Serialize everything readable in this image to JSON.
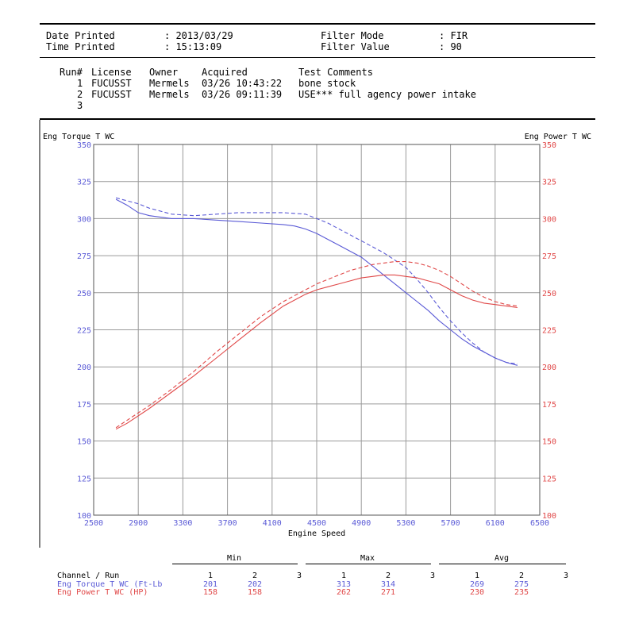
{
  "header": {
    "date_label": "Date Printed",
    "date_value": ": 2013/03/29",
    "time_label": "Time Printed",
    "time_value": ": 15:13:09",
    "filter_mode_label": "Filter Mode",
    "filter_mode_value": ": FIR",
    "filter_value_label": "Filter Value",
    "filter_value_value": ": 90"
  },
  "runs": {
    "columns": [
      "Run#",
      "License",
      "Owner",
      "Acquired",
      "Test Comments"
    ],
    "rows": [
      {
        "run": "1",
        "license": "FUCUSST",
        "owner": "Mermels",
        "acquired": "03/26 10:43:22",
        "comment": "bone stock"
      },
      {
        "run": "2",
        "license": "FUCUSST",
        "owner": "Mermels",
        "acquired": "03/26 09:11:39",
        "comment": "USE*** full agency power intake"
      },
      {
        "run": "3",
        "license": "",
        "owner": "",
        "acquired": "",
        "comment": ""
      }
    ]
  },
  "colors": {
    "torque": "#5a5ad6",
    "power": "#e04848",
    "grid": "#9a9a9a"
  },
  "chart_data": {
    "type": "line",
    "left_axis_label": "Eng Torque T WC",
    "right_axis_label": "Eng Power T WC",
    "xlabel": "Engine Speed",
    "xlim": [
      2500,
      6500
    ],
    "ylim": [
      100,
      350
    ],
    "x_ticks": [
      2500,
      2900,
      3300,
      3700,
      4100,
      4500,
      4900,
      5300,
      5700,
      6100,
      6500
    ],
    "y_ticks": [
      100,
      125,
      150,
      175,
      200,
      225,
      250,
      275,
      300,
      325,
      350
    ],
    "grid": true,
    "series": [
      {
        "name": "Eng Torque T WC (Ft-Lb) Run 1",
        "axis": "left",
        "style": "solid",
        "color_key": "torque",
        "x": [
          2700,
          2800,
          2900,
          3000,
          3200,
          3400,
          3600,
          3800,
          4000,
          4200,
          4300,
          4400,
          4500,
          4600,
          4700,
          4800,
          4900,
          5000,
          5100,
          5200,
          5300,
          5400,
          5500,
          5600,
          5700,
          5800,
          5900,
          6000,
          6100,
          6200,
          6300
        ],
        "y": [
          313,
          309,
          304,
          302,
          300,
          300,
          299,
          298,
          297,
          296,
          295,
          293,
          290,
          286,
          282,
          278,
          274,
          268,
          262,
          256,
          250,
          244,
          238,
          231,
          225,
          219,
          214,
          210,
          206,
          203,
          201
        ]
      },
      {
        "name": "Eng Torque T WC (Ft-Lb) Run 2",
        "axis": "left",
        "style": "dashed",
        "color_key": "torque",
        "x": [
          2700,
          2800,
          2900,
          3000,
          3200,
          3400,
          3600,
          3800,
          4000,
          4200,
          4400,
          4500,
          4600,
          4700,
          4800,
          4900,
          5000,
          5100,
          5200,
          5300,
          5400,
          5500,
          5600,
          5700,
          5800,
          5900,
          6000,
          6100,
          6200,
          6300
        ],
        "y": [
          314,
          312,
          310,
          307,
          303,
          302,
          303,
          304,
          304,
          304,
          303,
          300,
          297,
          293,
          289,
          285,
          281,
          277,
          272,
          267,
          259,
          250,
          240,
          231,
          223,
          216,
          210,
          206,
          203,
          202
        ]
      },
      {
        "name": "Eng Power T WC (HP) Run 1",
        "axis": "right",
        "style": "solid",
        "color_key": "power",
        "x": [
          2700,
          2800,
          3000,
          3200,
          3400,
          3600,
          3800,
          4000,
          4200,
          4400,
          4500,
          4600,
          4700,
          4800,
          4900,
          5000,
          5100,
          5200,
          5300,
          5400,
          5500,
          5600,
          5700,
          5800,
          5900,
          6000,
          6100,
          6200,
          6300
        ],
        "y": [
          158,
          162,
          172,
          183,
          194,
          206,
          218,
          230,
          241,
          249,
          252,
          254,
          256,
          258,
          260,
          261,
          262,
          262,
          261,
          260,
          258,
          256,
          252,
          248,
          245,
          243,
          242,
          241,
          240
        ]
      },
      {
        "name": "Eng Power T WC (HP) Run 2",
        "axis": "right",
        "style": "dashed",
        "color_key": "power",
        "x": [
          2700,
          2800,
          3000,
          3200,
          3400,
          3600,
          3800,
          4000,
          4200,
          4400,
          4500,
          4600,
          4700,
          4800,
          4900,
          5000,
          5100,
          5200,
          5300,
          5400,
          5500,
          5600,
          5700,
          5800,
          5900,
          6000,
          6100,
          6200,
          6300
        ],
        "y": [
          159,
          164,
          174,
          185,
          197,
          210,
          222,
          234,
          244,
          252,
          256,
          259,
          262,
          265,
          267,
          269,
          270,
          271,
          271,
          270,
          268,
          265,
          261,
          256,
          251,
          247,
          244,
          242,
          241
        ]
      }
    ]
  },
  "stats": {
    "groups": [
      "Min",
      "Max",
      "Avg"
    ],
    "channel_header": "Channel / Run",
    "run_labels": [
      "1",
      "2",
      "3"
    ],
    "rows": [
      {
        "label": "Eng Torque T WC (Ft-Lb",
        "color_key": "torque",
        "min": [
          "201",
          "202",
          ""
        ],
        "max": [
          "313",
          "314",
          ""
        ],
        "avg": [
          "269",
          "275",
          ""
        ]
      },
      {
        "label": "Eng Power T WC (HP)",
        "color_key": "power",
        "min": [
          "158",
          "158",
          ""
        ],
        "max": [
          "262",
          "271",
          ""
        ],
        "avg": [
          "230",
          "235",
          ""
        ]
      }
    ]
  }
}
